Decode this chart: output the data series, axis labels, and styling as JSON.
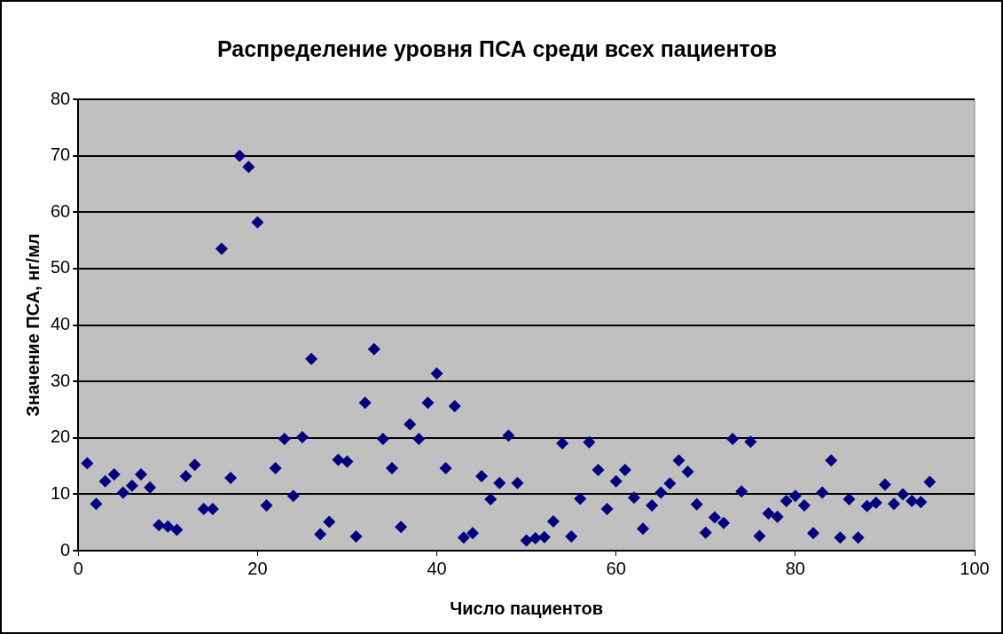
{
  "chart_data": {
    "type": "scatter",
    "title": "Распределение уровня ПСА среди всех пациентов",
    "xlabel": "Число пациентов",
    "ylabel": "Значение ПСА, нг/мл",
    "x": [
      1,
      2,
      3,
      4,
      5,
      6,
      7,
      8,
      9,
      10,
      11,
      12,
      13,
      14,
      15,
      16,
      17,
      18,
      19,
      20,
      21,
      22,
      23,
      24,
      25,
      26,
      27,
      28,
      29,
      30,
      31,
      32,
      33,
      34,
      35,
      36,
      37,
      38,
      39,
      40,
      41,
      42,
      43,
      44,
      45,
      46,
      47,
      48,
      49,
      50,
      51,
      52,
      53,
      54,
      55,
      56,
      57,
      58,
      59,
      60,
      61,
      62,
      63,
      64,
      65,
      66,
      67,
      68,
      69,
      70,
      71,
      72,
      73,
      74,
      75,
      76,
      77,
      78,
      79,
      80,
      81,
      82,
      83,
      84,
      85,
      86,
      87,
      88,
      89,
      90,
      91,
      92,
      93,
      94,
      95
    ],
    "series": [
      {
        "color": "#000080",
        "values": [
          15.5,
          8.3,
          12.3,
          13.5,
          10.3,
          11.5,
          13.5,
          11.2,
          4.5,
          4.3,
          3.7,
          13.2,
          15.2,
          7.4,
          7.4,
          53.5,
          12.9,
          70,
          68,
          58.2,
          8,
          14.6,
          19.8,
          9.7,
          20.1,
          34,
          2.9,
          5.1,
          16.1,
          15.8,
          2.5,
          26.2,
          35.7,
          19.8,
          14.6,
          4.2,
          22.4,
          19.8,
          26.2,
          31.4,
          14.6,
          25.6,
          2.3,
          3.1,
          13.2,
          9.1,
          12,
          20.4,
          12,
          1.8,
          2.2,
          2.4,
          5.2,
          19,
          2.5,
          9.2,
          19.2,
          14.3,
          7.4,
          12.3,
          14.3,
          9.4,
          3.9,
          8,
          10.3,
          11.9,
          16,
          14,
          8.2,
          3.2,
          5.9,
          4.9,
          19.8,
          10.5,
          19.3,
          2.6,
          6.6,
          6,
          8.8,
          9.7,
          8,
          3.1,
          10.3,
          16,
          2.3,
          9.1,
          2.3,
          7.9,
          8.5,
          11.7,
          8.3,
          10,
          8.8,
          8.6,
          12.2
        ]
      }
    ],
    "xlim": [
      0,
      100
    ],
    "xticks": [
      0,
      20,
      40,
      60,
      80,
      100
    ],
    "ylim": [
      0,
      80
    ],
    "yticks": [
      0,
      10,
      20,
      30,
      40,
      50,
      60,
      70,
      80
    ],
    "grid": "y",
    "legend": false,
    "marker": "diamond"
  }
}
